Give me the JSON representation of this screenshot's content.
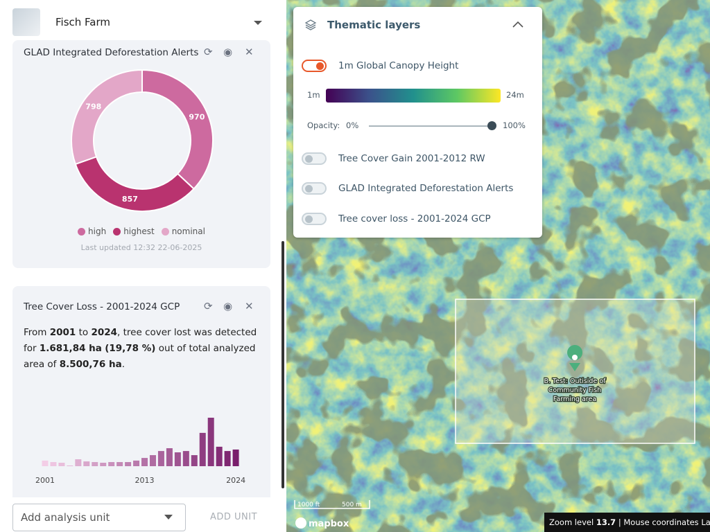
{
  "header": {
    "title": "Fisch Farm"
  },
  "glad_card": {
    "title": "GLAD Integrated Deforestation Alerts",
    "chart_data": {
      "type": "donut",
      "categories": [
        "high",
        "highest",
        "nominal"
      ],
      "values": [
        970,
        857,
        798
      ],
      "colors": [
        "#cd6a9f",
        "#b9336f",
        "#e3a7c8"
      ]
    },
    "updated": "Last updated 12:32 22-06-2025"
  },
  "loss_card": {
    "title": "Tree Cover Loss - 2001-2024 GCP",
    "summary": [
      {
        "text": "From ",
        "bold": false
      },
      {
        "text": "2001",
        "bold": true
      },
      {
        "text": " to ",
        "bold": false
      },
      {
        "text": "2024",
        "bold": true
      },
      {
        "text": ", tree cover lost was detected for ",
        "bold": false
      },
      {
        "text": "1.681,84 ha",
        "bold": true
      },
      {
        "text": " ",
        "bold": false
      },
      {
        "text": "(19,78 %)",
        "bold": true
      },
      {
        "text": " out of total analyzed area of ",
        "bold": false
      },
      {
        "text": "8.500,76 ha",
        "bold": true
      },
      {
        "text": ".",
        "bold": false
      }
    ],
    "chart_data": {
      "type": "bar",
      "categories": [
        "2001",
        null,
        null,
        null,
        null,
        null,
        null,
        null,
        null,
        null,
        null,
        null,
        "2013",
        null,
        null,
        null,
        null,
        null,
        null,
        null,
        null,
        null,
        null,
        "2024"
      ],
      "values": [
        34,
        25,
        21,
        4,
        42,
        29,
        25,
        21,
        25,
        25,
        25,
        34,
        50,
        67,
        92,
        109,
        84,
        92,
        67,
        202,
        294,
        118,
        92,
        101
      ],
      "color_start": "#f3cde6",
      "color_end": "#7a1f6c"
    }
  },
  "footer": {
    "select_placeholder": "Add analysis unit",
    "button": "ADD UNIT"
  },
  "layers_panel": {
    "title": "Thematic layers",
    "layers": [
      {
        "name": "1m Global Canopy Height",
        "enabled": true
      },
      {
        "name": "Tree Cover Gain 2001-2012 RW",
        "enabled": false
      },
      {
        "name": "GLAD Integrated Deforestation Alerts",
        "enabled": false
      },
      {
        "name": "Tree cover loss - 2001-2024 GCP",
        "enabled": false
      }
    ],
    "legend": {
      "min": "1m",
      "max": "24m"
    },
    "opacity": {
      "label": "Opacity:",
      "min": "0%",
      "max": "100%"
    }
  },
  "map": {
    "marker_label": [
      "B. Test: Outiside of",
      "Community Fish",
      "Farming area"
    ],
    "scale": {
      "imperial": "1000 ft",
      "metric": "500 m"
    },
    "attribution": "mapbox",
    "status": {
      "zoom_label": "Zoom level",
      "zoom_value": "13.7",
      "coords_label": "| Mouse coordinates La"
    }
  }
}
